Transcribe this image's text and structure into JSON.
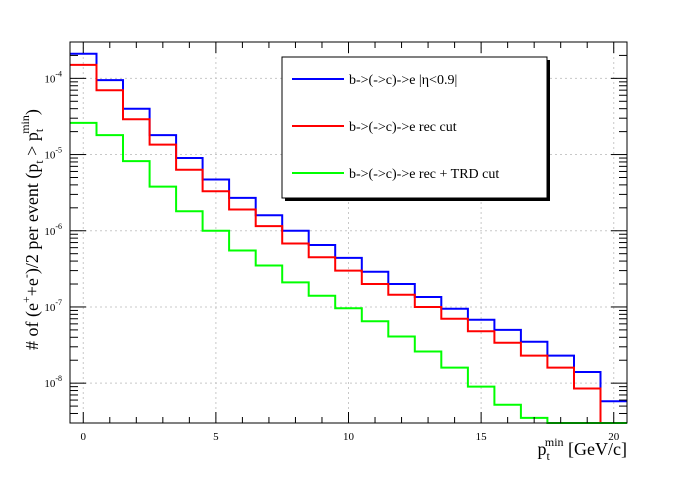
{
  "chart_data": {
    "type": "line",
    "step": true,
    "x_edges": [
      -0.5,
      0.5,
      1.5,
      2.5,
      3.5,
      4.5,
      5.5,
      6.5,
      7.5,
      8.5,
      9.5,
      10.5,
      11.5,
      12.5,
      13.5,
      14.5,
      15.5,
      16.5,
      17.5,
      18.5,
      19.5,
      20.5
    ],
    "xlim": [
      -0.5,
      20.5
    ],
    "ylim": [
      3e-09,
      0.0003
    ],
    "yscale": "log",
    "xlabel": "p_t^min [GeV/c]",
    "ylabel": "# of (e^+ + e^-)/2 per event (p_t > p_t^min)",
    "x_ticks": [
      "0",
      "5",
      "10",
      "15",
      "20"
    ],
    "x_tick_values": [
      0,
      5,
      10,
      15,
      20
    ],
    "y_ticks": [
      {
        "value": 1e-08,
        "base": "10",
        "exp": "-8"
      },
      {
        "value": 1e-07,
        "base": "10",
        "exp": "-7"
      },
      {
        "value": 1e-06,
        "base": "10",
        "exp": "-6"
      },
      {
        "value": 1e-05,
        "base": "10",
        "exp": "-5"
      },
      {
        "value": 0.0001,
        "base": "10",
        "exp": "-4"
      }
    ],
    "grid": true,
    "legend_position": "top-right",
    "series": [
      {
        "name": "b->(->c)->e |η<0.9|",
        "color": "#0000ff",
        "values": [
          0.00021,
          9.5e-05,
          4e-05,
          1.8e-05,
          9e-06,
          4.7e-06,
          2.7e-06,
          1.6e-06,
          1e-06,
          6.5e-07,
          4.4e-07,
          2.9e-07,
          2e-07,
          1.35e-07,
          9.5e-08,
          6.8e-08,
          5e-08,
          3.5e-08,
          2.3e-08,
          1.4e-08,
          5.8e-09
        ]
      },
      {
        "name": "b->(->c)->e rec cut",
        "color": "#ff0000",
        "values": [
          0.00015,
          7e-05,
          2.9e-05,
          1.35e-05,
          6.3e-06,
          3.3e-06,
          1.9e-06,
          1.15e-06,
          6.8e-07,
          4.5e-07,
          3e-07,
          2e-07,
          1.45e-07,
          1e-07,
          7e-08,
          4.8e-08,
          3.4e-08,
          2.3e-08,
          1.6e-08,
          8.5e-09,
          3e-09
        ]
      },
      {
        "name": "b->(->c)->e rec + TRD cut",
        "color": "#00ff00",
        "values": [
          2.6e-05,
          1.8e-05,
          8.2e-06,
          3.8e-06,
          1.8e-06,
          1e-06,
          5.5e-07,
          3.5e-07,
          2.1e-07,
          1.4e-07,
          9.6e-08,
          6.5e-08,
          4.1e-08,
          2.6e-08,
          1.6e-08,
          9e-09,
          5.2e-09,
          3.5e-09,
          3e-09,
          3e-09,
          3e-09
        ]
      }
    ]
  },
  "legend": [
    {
      "label": "b->(->c)->e |η<0.9|"
    },
    {
      "label": "b->(->c)->e rec cut"
    },
    {
      "label": "b->(->c)->e rec + TRD cut"
    }
  ]
}
